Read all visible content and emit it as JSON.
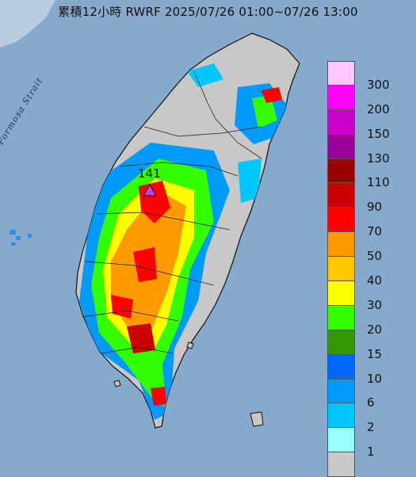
{
  "title": "累積12小時 RWRF 2025/07/26 01:00~07/26 13:00",
  "strait_label": "Formosa Strait",
  "max_value": {
    "label": "141",
    "color": "#c040e0"
  },
  "land_color": "#c8c8c8",
  "sea_color": "#86a9cc",
  "legend": [
    {
      "label": "300",
      "color": "#fdc8fd"
    },
    {
      "label": "200",
      "color": "#fd00fd"
    },
    {
      "label": "150",
      "color": "#cc00cc"
    },
    {
      "label": "130",
      "color": "#9a009a"
    },
    {
      "label": "110",
      "color": "#9a0000"
    },
    {
      "label": "90",
      "color": "#cc0000"
    },
    {
      "label": "70",
      "color": "#fd0000"
    },
    {
      "label": "50",
      "color": "#fd9a00"
    },
    {
      "label": "40",
      "color": "#fdc800"
    },
    {
      "label": "30",
      "color": "#fdfd00"
    },
    {
      "label": "20",
      "color": "#33fd00"
    },
    {
      "label": "15",
      "color": "#329a00"
    },
    {
      "label": "10",
      "color": "#0066fd"
    },
    {
      "label": "6",
      "color": "#009afd"
    },
    {
      "label": "2",
      "color": "#00c8fd"
    },
    {
      "label": "1",
      "color": "#9afdfd"
    },
    {
      "label": "",
      "color": "#c8c8c8"
    }
  ]
}
